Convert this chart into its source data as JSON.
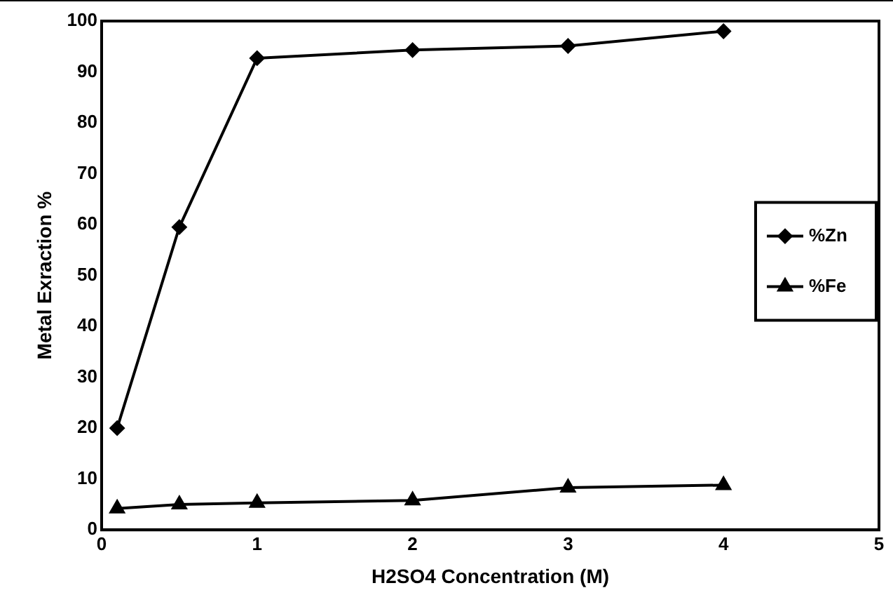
{
  "chart_data": {
    "type": "line",
    "xlabel": "H2SO4 Concentration (M)",
    "ylabel": "Metal Exraction %",
    "x": [
      0.1,
      0.5,
      1,
      2,
      3,
      4
    ],
    "series": [
      {
        "name": "%Zn",
        "color": "#000000",
        "marker": "diamond",
        "values": [
          20,
          59.5,
          92.7,
          94.3,
          95.1,
          98
        ]
      },
      {
        "name": "%Fe",
        "color": "#000000",
        "marker": "triangle",
        "values": [
          4.2,
          5,
          5.3,
          5.8,
          8.3,
          8.8
        ]
      }
    ],
    "xlim": [
      0,
      5
    ],
    "xticks": [
      0,
      1,
      2,
      3,
      4,
      5
    ],
    "ylim": [
      0,
      100
    ],
    "yticks": [
      0,
      10,
      20,
      30,
      40,
      50,
      60,
      70,
      80,
      90,
      100
    ],
    "grid": false,
    "legend": "right",
    "line_style": "solid"
  }
}
